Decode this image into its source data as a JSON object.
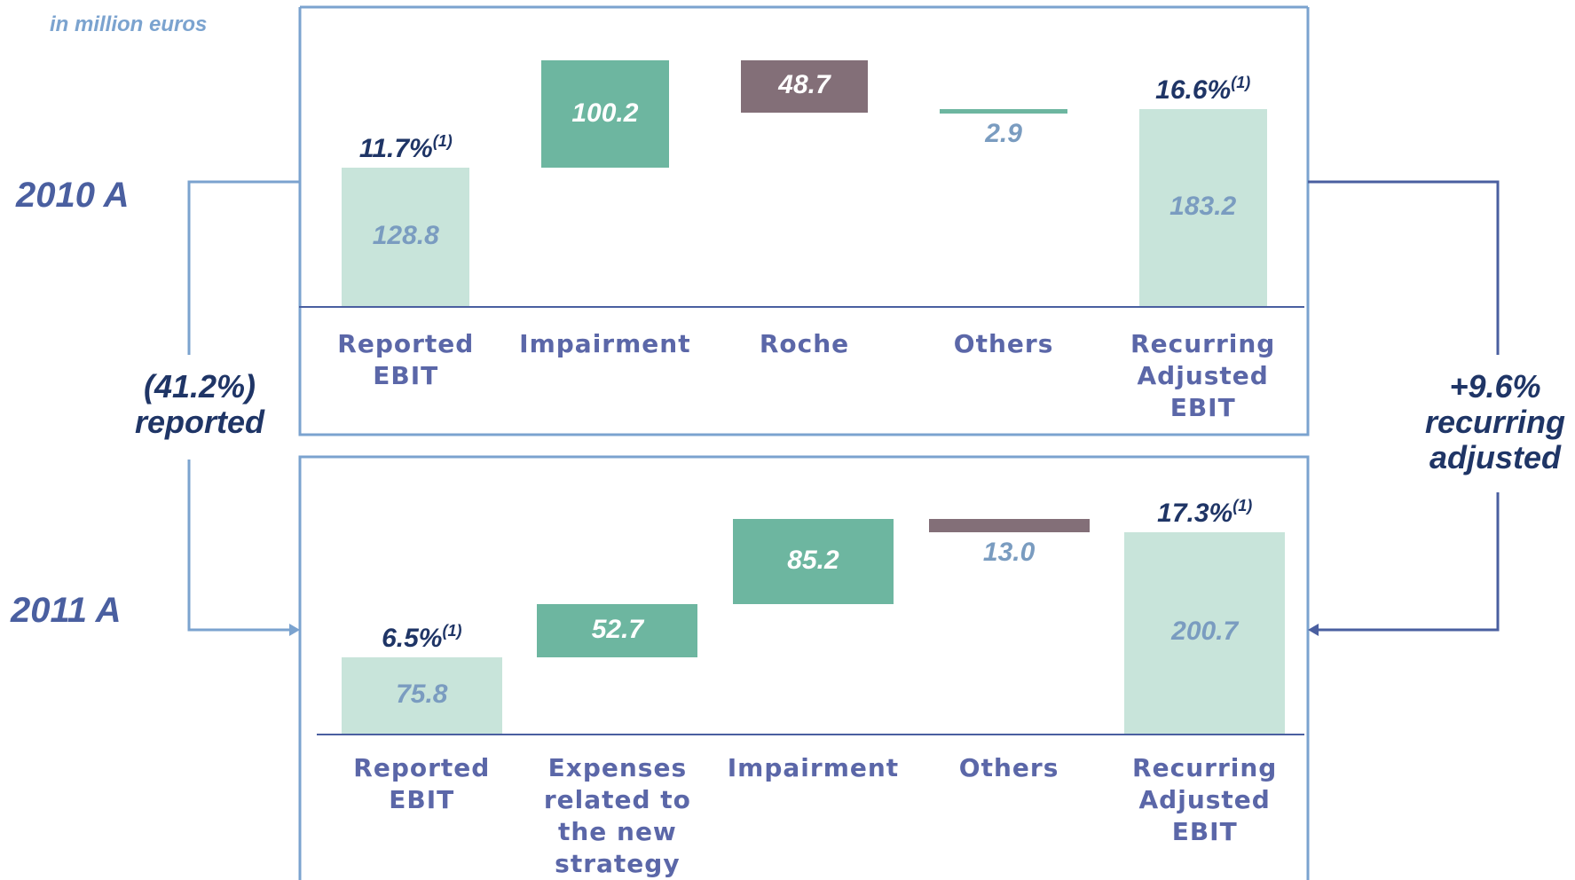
{
  "unit_note": "in million euros",
  "left_change": {
    "value": "(41.2%)",
    "text": "reported"
  },
  "right_change": {
    "value": "+9.6%",
    "text": "recurring adjusted"
  },
  "chart_data": [
    {
      "type": "waterfall",
      "title": "2010 A",
      "categories": [
        "Reported EBIT",
        "Impairment",
        "Roche",
        "Others",
        "Recurring Adjusted EBIT"
      ],
      "values": [
        128.8,
        100.2,
        48.7,
        2.9,
        183.2
      ],
      "value_labels": [
        "128.8",
        "100.2",
        "48.7",
        "2.9",
        "183.2"
      ],
      "kinds": [
        "total",
        "increase",
        "decrease",
        "increase",
        "total"
      ],
      "margins": [
        "11.7%",
        null,
        null,
        null,
        "16.6%"
      ],
      "footnote_mark": "(1)",
      "colors": {
        "total": "#c8e4da",
        "increase": "#6db6a0",
        "decrease": "#836f78"
      }
    },
    {
      "type": "waterfall",
      "title": "2011 A",
      "categories": [
        "Reported EBIT",
        "Expenses related to the new strategy",
        "Impairment",
        "Others",
        "Recurring Adjusted EBIT"
      ],
      "values": [
        75.8,
        52.7,
        85.2,
        13.0,
        200.7
      ],
      "value_labels": [
        "75.8",
        "52.7",
        "85.2",
        "13.0",
        "200.7"
      ],
      "kinds": [
        "total",
        "increase",
        "increase",
        "decrease",
        "total"
      ],
      "margins": [
        "6.5%",
        null,
        null,
        null,
        "17.3%"
      ],
      "footnote_mark": "(1)",
      "colors": {
        "total": "#c8e4da",
        "increase": "#6db6a0",
        "decrease": "#836f78"
      }
    }
  ]
}
